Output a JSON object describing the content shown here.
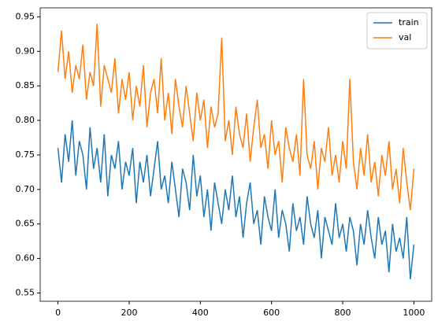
{
  "chart_data": {
    "type": "line",
    "x": [
      0,
      10,
      20,
      30,
      40,
      50,
      60,
      70,
      80,
      90,
      100,
      110,
      120,
      130,
      140,
      150,
      160,
      170,
      180,
      190,
      200,
      210,
      220,
      230,
      240,
      250,
      260,
      270,
      280,
      290,
      300,
      310,
      320,
      330,
      340,
      350,
      360,
      370,
      380,
      390,
      400,
      410,
      420,
      430,
      440,
      450,
      460,
      470,
      480,
      490,
      500,
      510,
      520,
      530,
      540,
      550,
      560,
      570,
      580,
      590,
      600,
      610,
      620,
      630,
      640,
      650,
      660,
      670,
      680,
      690,
      700,
      710,
      720,
      730,
      740,
      750,
      760,
      770,
      780,
      790,
      800,
      810,
      820,
      830,
      840,
      850,
      860,
      870,
      880,
      890,
      900,
      910,
      920,
      930,
      940,
      950,
      960,
      970,
      980,
      990,
      1000
    ],
    "series": [
      {
        "name": "train",
        "color": "#1f77b4",
        "values": [
          0.76,
          0.71,
          0.78,
          0.74,
          0.8,
          0.72,
          0.77,
          0.75,
          0.7,
          0.79,
          0.73,
          0.76,
          0.71,
          0.78,
          0.69,
          0.75,
          0.73,
          0.77,
          0.7,
          0.74,
          0.72,
          0.76,
          0.68,
          0.74,
          0.71,
          0.75,
          0.69,
          0.73,
          0.77,
          0.7,
          0.72,
          0.68,
          0.74,
          0.7,
          0.66,
          0.73,
          0.71,
          0.67,
          0.75,
          0.69,
          0.72,
          0.66,
          0.7,
          0.64,
          0.71,
          0.68,
          0.65,
          0.7,
          0.67,
          0.72,
          0.66,
          0.69,
          0.63,
          0.68,
          0.71,
          0.65,
          0.67,
          0.62,
          0.69,
          0.66,
          0.64,
          0.7,
          0.63,
          0.67,
          0.65,
          0.61,
          0.68,
          0.64,
          0.66,
          0.62,
          0.69,
          0.65,
          0.63,
          0.67,
          0.6,
          0.66,
          0.64,
          0.62,
          0.68,
          0.63,
          0.65,
          0.61,
          0.66,
          0.64,
          0.59,
          0.65,
          0.62,
          0.67,
          0.63,
          0.6,
          0.66,
          0.62,
          0.64,
          0.58,
          0.65,
          0.61,
          0.63,
          0.6,
          0.66,
          0.57,
          0.62
        ]
      },
      {
        "name": "val",
        "color": "#ff7f0e",
        "values": [
          0.87,
          0.93,
          0.86,
          0.9,
          0.84,
          0.88,
          0.86,
          0.91,
          0.83,
          0.87,
          0.85,
          0.94,
          0.82,
          0.88,
          0.86,
          0.84,
          0.89,
          0.81,
          0.86,
          0.83,
          0.87,
          0.8,
          0.85,
          0.82,
          0.88,
          0.79,
          0.84,
          0.86,
          0.81,
          0.89,
          0.8,
          0.84,
          0.78,
          0.86,
          0.82,
          0.79,
          0.85,
          0.81,
          0.77,
          0.84,
          0.8,
          0.83,
          0.76,
          0.82,
          0.79,
          0.81,
          0.92,
          0.77,
          0.8,
          0.75,
          0.82,
          0.78,
          0.76,
          0.81,
          0.74,
          0.79,
          0.83,
          0.76,
          0.78,
          0.73,
          0.8,
          0.75,
          0.77,
          0.71,
          0.79,
          0.76,
          0.74,
          0.78,
          0.72,
          0.86,
          0.75,
          0.73,
          0.77,
          0.7,
          0.76,
          0.74,
          0.79,
          0.72,
          0.75,
          0.71,
          0.77,
          0.73,
          0.86,
          0.74,
          0.7,
          0.76,
          0.72,
          0.78,
          0.71,
          0.74,
          0.69,
          0.75,
          0.72,
          0.77,
          0.7,
          0.73,
          0.68,
          0.76,
          0.71,
          0.67,
          0.73
        ]
      }
    ],
    "xlim": [
      -50,
      1050
    ],
    "xticks": [
      0,
      200,
      400,
      600,
      800,
      1000
    ],
    "ylim": [
      0.538,
      0.963
    ],
    "yticks": [
      0.55,
      {
        "value": 0.6,
        "label": "0.60"
      },
      0.65,
      {
        "value": 0.7,
        "label": "0.70"
      },
      0.75,
      {
        "value": 0.8,
        "label": "0.80"
      },
      0.85,
      {
        "value": 0.9,
        "label": "0.90"
      },
      0.95
    ],
    "legend": "upper right"
  }
}
